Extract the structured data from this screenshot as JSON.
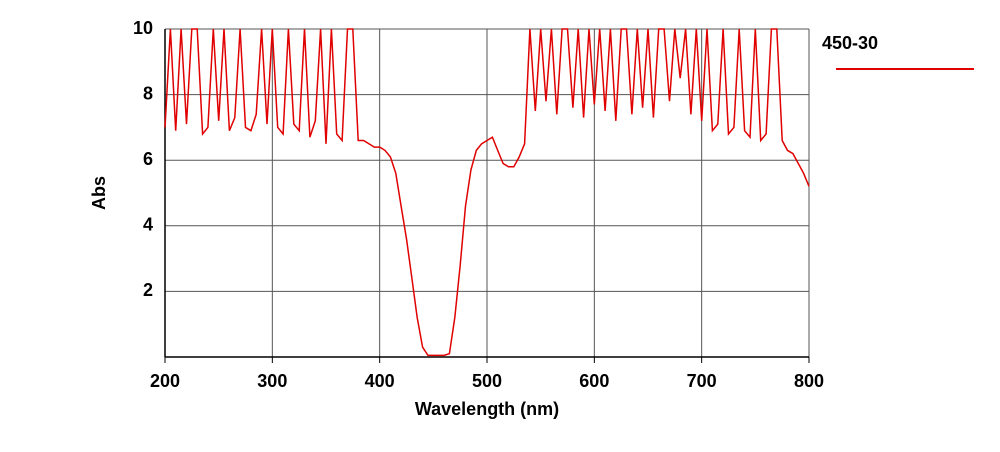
{
  "chart_data": {
    "type": "line",
    "x_label": "Wavelength (nm)",
    "y_label": "Abs",
    "x": [
      200,
      205,
      210,
      215,
      220,
      225,
      230,
      235,
      240,
      245,
      250,
      255,
      260,
      265,
      270,
      275,
      280,
      285,
      290,
      295,
      300,
      305,
      310,
      315,
      320,
      325,
      330,
      335,
      340,
      345,
      350,
      355,
      360,
      365,
      370,
      375,
      380,
      385,
      390,
      395,
      400,
      405,
      410,
      415,
      420,
      425,
      430,
      435,
      440,
      445,
      450,
      455,
      460,
      465,
      470,
      475,
      480,
      485,
      490,
      495,
      500,
      505,
      510,
      515,
      520,
      525,
      530,
      535,
      540,
      545,
      550,
      555,
      560,
      565,
      570,
      575,
      580,
      585,
      590,
      595,
      600,
      605,
      610,
      615,
      620,
      625,
      630,
      635,
      640,
      645,
      650,
      655,
      660,
      665,
      670,
      675,
      680,
      685,
      690,
      695,
      700,
      705,
      710,
      715,
      720,
      725,
      730,
      735,
      740,
      745,
      750,
      755,
      760,
      765,
      770,
      775,
      780,
      785,
      790,
      795,
      800
    ],
    "series": [
      {
        "name": "450-30",
        "color": "#e00000",
        "values": [
          7.0,
          10,
          6.9,
          10,
          7.1,
          10,
          10,
          6.8,
          7.0,
          10,
          7.2,
          10,
          6.9,
          7.3,
          10,
          7.0,
          6.9,
          7.4,
          10,
          7.1,
          10,
          7.0,
          6.8,
          10,
          7.1,
          6.9,
          10,
          6.7,
          7.2,
          10,
          6.5,
          10,
          6.8,
          6.6,
          10,
          10,
          6.6,
          6.6,
          6.5,
          6.4,
          6.4,
          6.3,
          6.1,
          5.6,
          4.6,
          3.6,
          2.4,
          1.2,
          0.3,
          0.05,
          0.05,
          0.05,
          0.05,
          0.1,
          1.2,
          2.8,
          4.6,
          5.7,
          6.3,
          6.5,
          6.6,
          6.7,
          6.3,
          5.9,
          5.8,
          5.8,
          6.1,
          6.5,
          10,
          7.5,
          10,
          7.8,
          10,
          7.4,
          10,
          10,
          7.6,
          10,
          7.3,
          10,
          7.7,
          10,
          7.5,
          10,
          7.2,
          10,
          10,
          7.4,
          10,
          7.6,
          10,
          7.3,
          10,
          10,
          7.8,
          10,
          8.5,
          10,
          7.4,
          10,
          7.2,
          10,
          6.9,
          7.1,
          10,
          6.8,
          7.0,
          10,
          6.9,
          6.7,
          10,
          6.6,
          6.8,
          10,
          10,
          6.6,
          6.3,
          6.2,
          5.9,
          5.6,
          5.2
        ]
      }
    ],
    "xlim": [
      200,
      800
    ],
    "xticks": [
      200,
      300,
      400,
      500,
      600,
      700,
      800
    ],
    "ylim": [
      0,
      10
    ],
    "yticks": [
      2,
      4,
      6,
      8,
      10
    ],
    "grid": true
  }
}
